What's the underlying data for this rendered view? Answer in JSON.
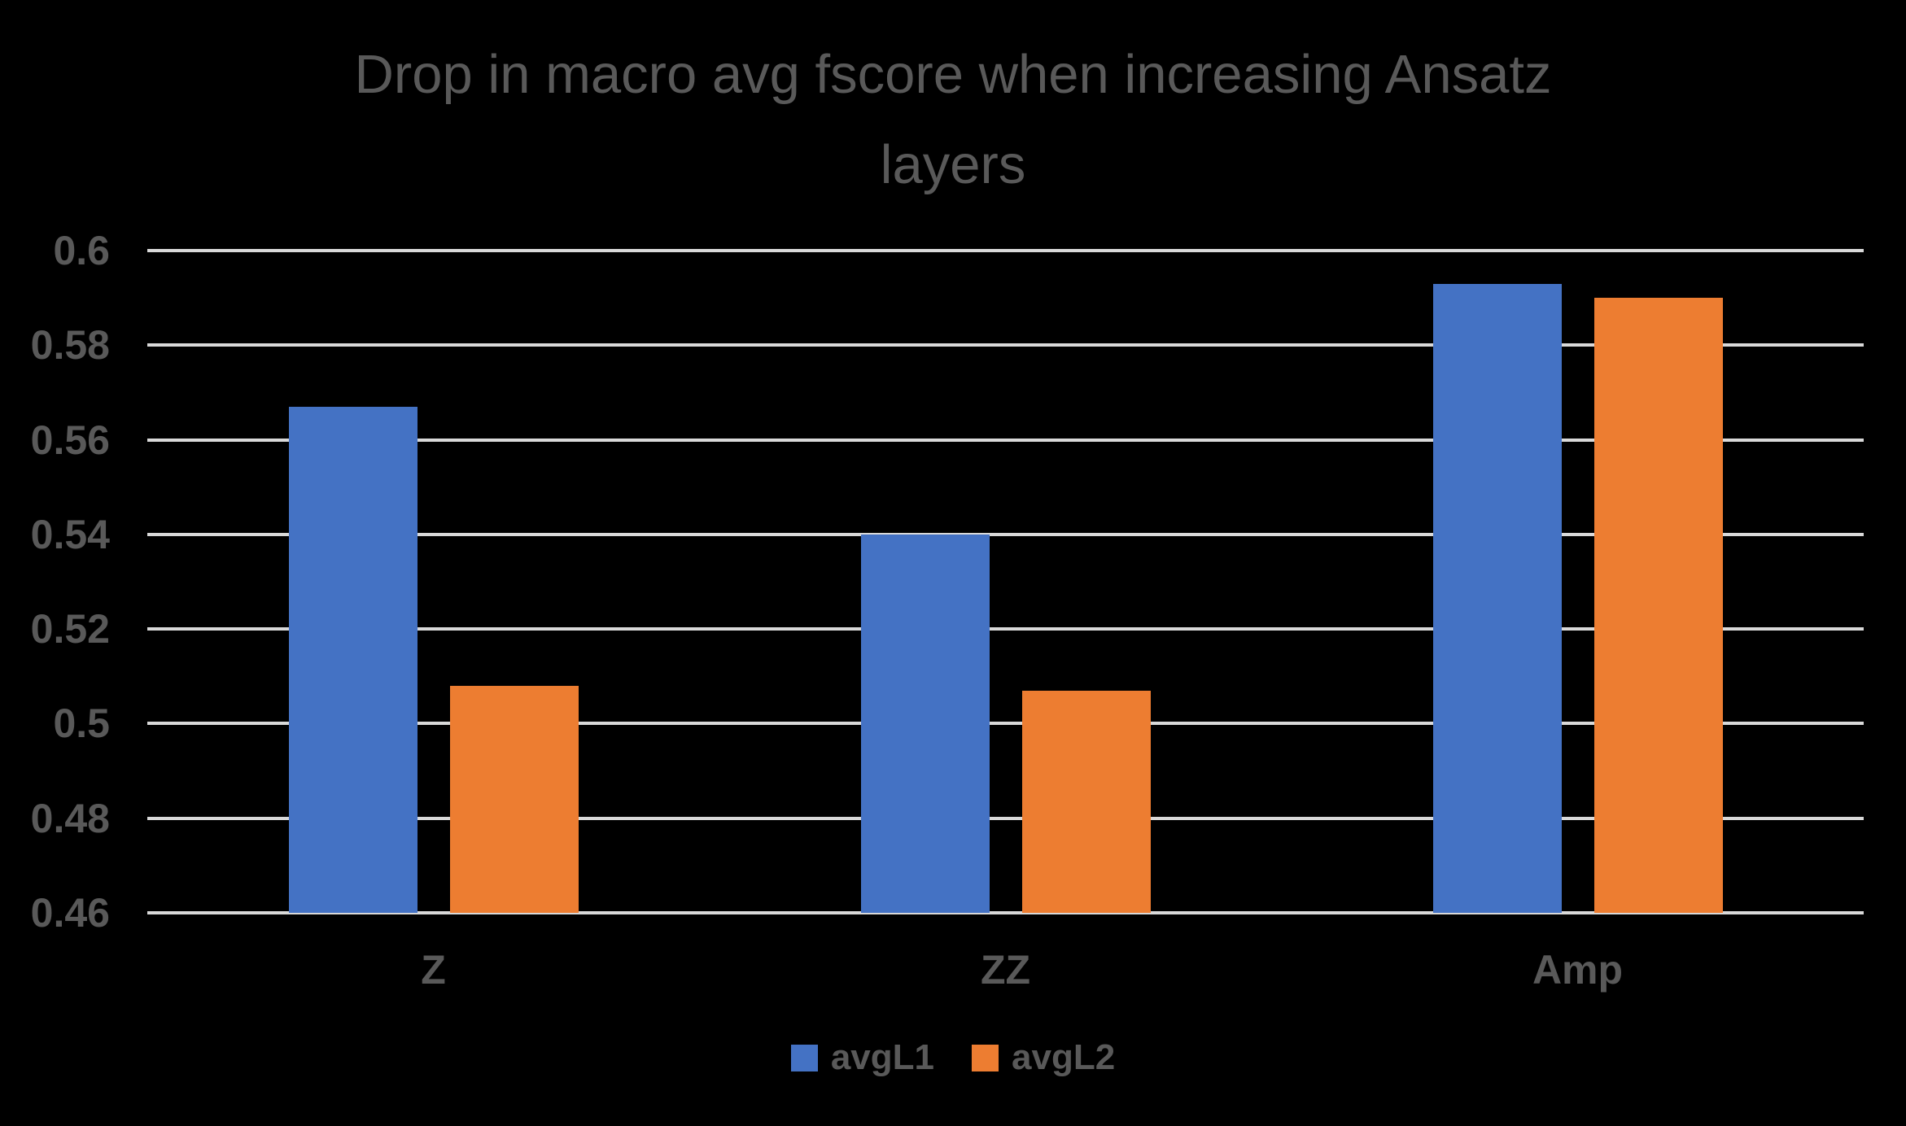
{
  "chart_data": {
    "type": "bar",
    "title": "Drop in macro avg fscore when increasing Ansatz layers",
    "title_lines": [
      "Drop in macro avg fscore when increasing Ansatz",
      "layers"
    ],
    "categories": [
      "Z",
      "ZZ",
      "Amp"
    ],
    "series": [
      {
        "name": "avgL1",
        "color": "#4472C4",
        "values": [
          0.567,
          0.54,
          0.593
        ]
      },
      {
        "name": "avgL2",
        "color": "#ED7D31",
        "values": [
          0.508,
          0.507,
          0.59
        ]
      }
    ],
    "ylim": [
      0.46,
      0.6
    ],
    "ytick_step": 0.02,
    "yticks": [
      "0.6",
      "0.58",
      "0.56",
      "0.54",
      "0.52",
      "0.5",
      "0.48",
      "0.46"
    ],
    "xlabel": "",
    "ylabel": "",
    "grid": "horizontal",
    "legend_position": "bottom",
    "colors": {
      "background": "#000000",
      "text": "#595959",
      "gridline": "#D9D9D9"
    }
  }
}
